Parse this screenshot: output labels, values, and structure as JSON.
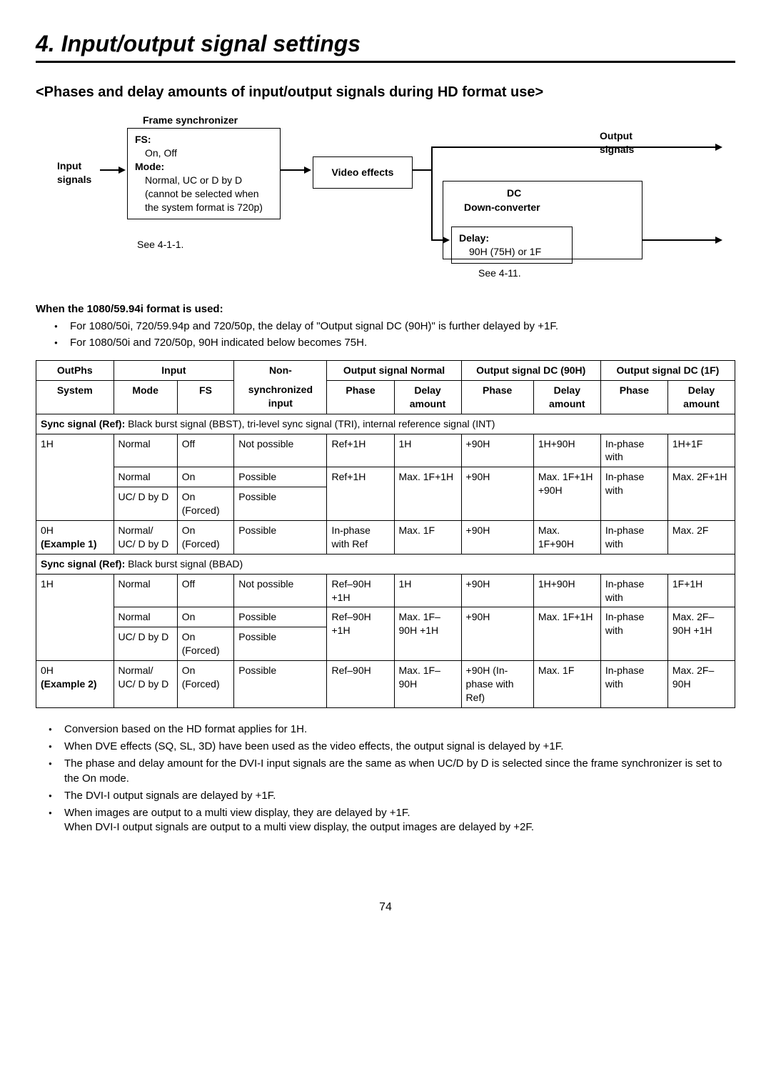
{
  "chapter_title": "4. Input/output signal settings",
  "section_title": "<Phases and delay amounts of input/output signals during HD format use>",
  "diagram": {
    "frame_sync_label": "Frame synchronizer",
    "input_signals_label": "Input signals",
    "fs_box": {
      "fs_label": "FS:",
      "fs_value": "On, Off",
      "mode_label": "Mode:",
      "mode_value": "Normal, UC or D by D (cannot be selected when the system format is 720p)"
    },
    "see_fs_ref": "See 4-1-1.",
    "video_effects_label": "Video effects",
    "output_signals_label": "Output signals",
    "dc_label": "DC",
    "dc_sub_label": "Down-converter",
    "delay_box": {
      "delay_label": "Delay:",
      "delay_value": "90H (75H)  or 1F"
    },
    "see_delay_ref": "See 4-11."
  },
  "format_heading": "When the 1080/59.94i format is used:",
  "format_bullets": [
    "For 1080/50i, 720/59.94p and 720/50p, the delay of \"Output signal       DC (90H)\" is further delayed by +1F.",
    "For 1080/50i and 720/50p, 90H indicated below becomes 75H."
  ],
  "table": {
    "headers": {
      "outphs": "OutPhs",
      "input": "Input",
      "nonsync1": "Non-",
      "nonsync2": "synchronized input",
      "normal": "Output signal Normal",
      "dc90h": "Output signal DC (90H)",
      "dc1f": "Output signal DC (1F)",
      "system": "System",
      "mode": "Mode",
      "fs": "FS",
      "phase": "Phase",
      "delay_amount": "Delay amount"
    },
    "section1_label_bold": "Sync signal (Ref):",
    "section1_label_rest": " Black burst signal (BBST), tri-level sync signal (TRI), internal reference signal (INT)",
    "rows1": [
      {
        "system": "1H",
        "system_sub": "",
        "mode": "Normal",
        "fs": "Off",
        "nonsync": "Not possible",
        "n_phase": "Ref+1H",
        "n_delay": "1H",
        "d90_phase": "+90H",
        "d90_delay": "1H+90H",
        "d1f_phase": "In-phase with",
        "d1f_delay": "1H+1F"
      },
      {
        "system": "",
        "system_sub": "",
        "mode": "Normal",
        "fs": "On",
        "nonsync": "Possible",
        "n_phase": "Ref+1H",
        "n_delay": "Max. 1F+1H",
        "d90_phase": "+90H",
        "d90_delay": "Max. 1F+1H +90H",
        "d1f_phase": "In-phase with",
        "d1f_delay": "Max. 2F+1H"
      },
      {
        "system": "",
        "system_sub": "",
        "mode": "UC/ D by D",
        "fs": "On (Forced)",
        "nonsync": "Possible",
        "n_phase": "",
        "n_delay": "",
        "d90_phase": "",
        "d90_delay": "",
        "d1f_phase": "",
        "d1f_delay": ""
      },
      {
        "system": "0H",
        "system_sub": "(Example 1)",
        "mode": "Normal/ UC/ D by D",
        "fs": "On (Forced)",
        "nonsync": "Possible",
        "n_phase": "In-phase with Ref",
        "n_delay": "Max. 1F",
        "d90_phase": "+90H",
        "d90_delay": "Max. 1F+90H",
        "d1f_phase": "In-phase with",
        "d1f_delay": "Max. 2F"
      }
    ],
    "section2_label_bold": "Sync signal (Ref):",
    "section2_label_rest": " Black burst signal (BBAD)",
    "rows2": [
      {
        "system": "1H",
        "system_sub": "",
        "mode": "Normal",
        "fs": "Off",
        "nonsync": "Not possible",
        "n_phase": "Ref–90H +1H",
        "n_delay": "1H",
        "d90_phase": "+90H",
        "d90_delay": "1H+90H",
        "d1f_phase": "In-phase with",
        "d1f_delay": "1F+1H"
      },
      {
        "system": "",
        "system_sub": "",
        "mode": "Normal",
        "fs": "On",
        "nonsync": "Possible",
        "n_phase": "Ref–90H +1H",
        "n_delay": "Max. 1F–90H +1H",
        "d90_phase": "+90H",
        "d90_delay": "Max. 1F+1H",
        "d1f_phase": "In-phase with",
        "d1f_delay": "Max. 2F–90H +1H"
      },
      {
        "system": "",
        "system_sub": "",
        "mode": "UC/ D by D",
        "fs": "On (Forced)",
        "nonsync": "Possible",
        "n_phase": "",
        "n_delay": "",
        "d90_phase": "",
        "d90_delay": "",
        "d1f_phase": "",
        "d1f_delay": ""
      },
      {
        "system": "0H",
        "system_sub": "(Example 2)",
        "mode": "Normal/ UC/ D by D",
        "fs": "On (Forced)",
        "nonsync": "Possible",
        "n_phase": "Ref–90H",
        "n_delay": "Max. 1F–90H",
        "d90_phase": "+90H (In-phase with Ref)",
        "d90_delay": "Max. 1F",
        "d1f_phase": "In-phase with",
        "d1f_delay": "Max. 2F–90H"
      }
    ]
  },
  "notes": [
    "Conversion based on the HD format applies for 1H.",
    "When DVE effects (SQ, SL, 3D) have been used as the video effects, the output signal is delayed by +1F.",
    "The phase and delay amount for the DVI-I input signals are the same as when UC/D by D is selected since the frame synchronizer is set to the On mode.",
    "The DVI-I output signals are delayed by +1F.",
    "When images are output to a multi view display, they are delayed by +1F.\nWhen DVI-I output signals are output to a multi view display, the output images are delayed by +2F."
  ],
  "page_number": "74"
}
